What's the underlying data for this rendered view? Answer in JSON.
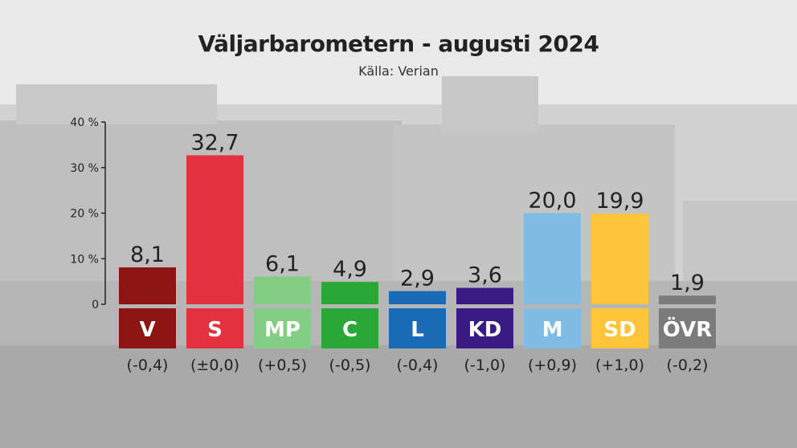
{
  "title": "Väljarbarometern - augusti 2024",
  "subtitle": "Källa: Verian",
  "chart_data": {
    "type": "bar",
    "title": "Väljarbarometern - augusti 2024",
    "subtitle": "Källa: Verian",
    "ylim": [
      0,
      40
    ],
    "yticks": [
      0,
      10,
      20,
      30,
      40
    ],
    "ytick_labels": [
      "0",
      "10 %",
      "20 %",
      "30 %",
      "40 %"
    ],
    "grid": false,
    "categories": [
      "V",
      "S",
      "MP",
      "C",
      "L",
      "KD",
      "M",
      "SD",
      "ÖVR"
    ],
    "values": [
      8.1,
      32.7,
      6.1,
      4.9,
      2.9,
      3.6,
      20.0,
      19.9,
      1.9
    ],
    "value_labels": [
      "8,1",
      "32,7",
      "6,1",
      "4,9",
      "2,9",
      "3,6",
      "20,0",
      "19,9",
      "1,9"
    ],
    "changes": [
      "(-0,4)",
      "(±0,0)",
      "(+0,5)",
      "(-0,5)",
      "(-0,4)",
      "(-1,0)",
      "(+0,9)",
      "(+1,0)",
      "(-0,2)"
    ],
    "colors": [
      "#8c1514",
      "#e2313f",
      "#83ce84",
      "#2aa837",
      "#1a6bb5",
      "#3a1b86",
      "#7ebce4",
      "#fec43a",
      "#7b7b7b"
    ]
  }
}
